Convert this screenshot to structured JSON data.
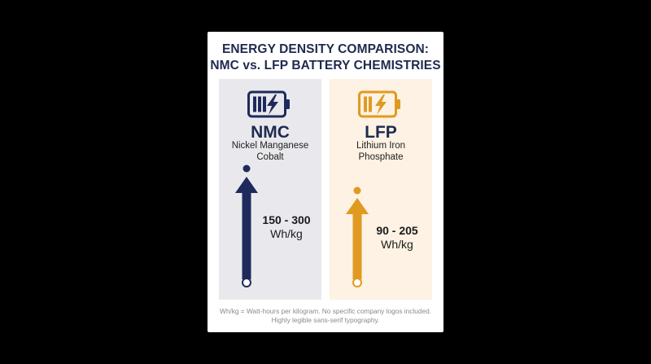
{
  "title": {
    "line1": "ENERGY DENSITY COMPARISON:",
    "line2": "NMC vs. LFP BATTERY CHEMISTRIES"
  },
  "panels": [
    {
      "name": "NMC",
      "subtitle_line1": "Nickel Manganese",
      "subtitle_line2": "Cobalt",
      "range_value": "150 - 300",
      "range_unit": "Wh/kg",
      "color": "#1f2a5c",
      "icon": "battery-bolt-icon"
    },
    {
      "name": "LFP",
      "subtitle_line1": "Lithium Iron",
      "subtitle_line2": "Phosphate",
      "range_value": "90 - 205",
      "range_unit": "Wh/kg",
      "color": "#e09a22",
      "icon": "battery-bolt-icon"
    }
  ],
  "footnote": {
    "line1": "Wh/kg = Watt-hours per kilogram. No specific company logos included.",
    "line2": "Highly legible sans-serif typography."
  }
}
